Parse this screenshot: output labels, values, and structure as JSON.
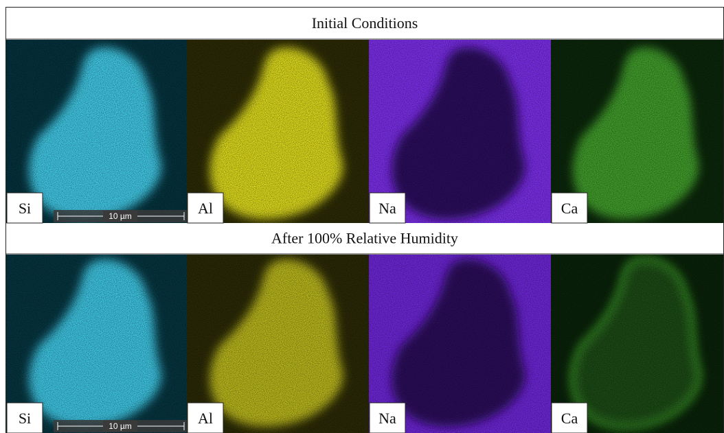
{
  "rows": [
    {
      "title": "Initial Conditions",
      "panels": [
        {
          "label": "Si"
        },
        {
          "label": "Al"
        },
        {
          "label": "Na"
        },
        {
          "label": "Ca"
        }
      ],
      "scale_bar": "10 µm"
    },
    {
      "title": "After 100% Relative Humidity",
      "panels": [
        {
          "label": "Si"
        },
        {
          "label": "Al"
        },
        {
          "label": "Na"
        },
        {
          "label": "Ca"
        }
      ],
      "scale_bar": "10 µm"
    }
  ]
}
